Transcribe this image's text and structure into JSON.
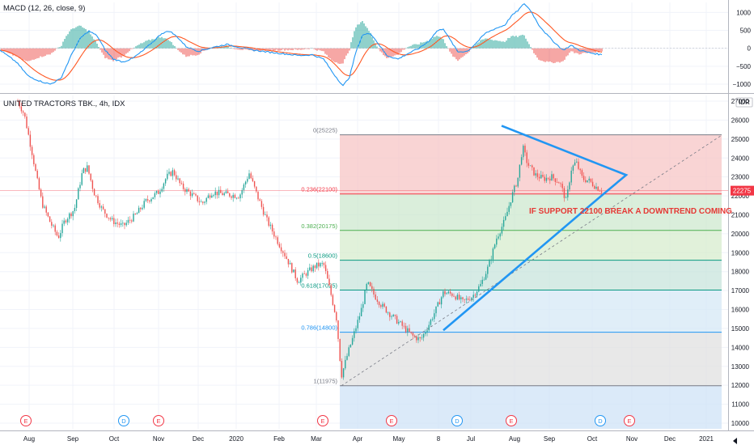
{
  "macd_panel": {
    "title": "MACD (12, 26, close, 9)",
    "y_ticks": [
      "1000",
      "500",
      "0",
      "−500",
      "−1000"
    ],
    "y_tick_values": [
      1000,
      500,
      0,
      -500,
      -1000
    ],
    "ylim": [
      -1180,
      1280
    ]
  },
  "price_panel": {
    "title": "UNITED TRACTORS TBK., 4h, IDX",
    "currency": "IDR",
    "y_ticks": [
      "27000",
      "26000",
      "25000",
      "24000",
      "23000",
      "22000",
      "21000",
      "20000",
      "19000",
      "18000",
      "17000",
      "16000",
      "15000",
      "14000",
      "13000",
      "12000",
      "11000",
      "10000"
    ],
    "y_tick_values": [
      27000,
      26000,
      25000,
      24000,
      23000,
      22000,
      21000,
      20000,
      19000,
      18000,
      17000,
      16000,
      15000,
      14000,
      13000,
      12000,
      11000,
      10000
    ],
    "ylim": [
      9700,
      27300
    ],
    "current_price_label": "22275",
    "current_price": 22275,
    "annotation": "IF SUPPORT 22100 BREAK A DOWNTREND COMING"
  },
  "x_axis": {
    "labels": [
      "Aug",
      "Sep",
      "Oct",
      "Nov",
      "Dec",
      "2020",
      "Feb",
      "Mar",
      "Apr",
      "May",
      "8",
      "Jul",
      "Aug",
      "Sep",
      "Oct",
      "Nov",
      "Dec",
      "2021"
    ]
  },
  "events": [
    {
      "letter": "E",
      "kind": "earnings"
    },
    {
      "letter": "D",
      "kind": "dividend"
    },
    {
      "letter": "E",
      "kind": "earnings"
    },
    {
      "letter": "E",
      "kind": "earnings"
    },
    {
      "letter": "E",
      "kind": "earnings"
    },
    {
      "letter": "D",
      "kind": "dividend"
    },
    {
      "letter": "E",
      "kind": "earnings"
    },
    {
      "letter": "D",
      "kind": "dividend"
    },
    {
      "letter": "E",
      "kind": "earnings"
    }
  ],
  "colors": {
    "up": "#26a69a",
    "down": "#ef5350",
    "macd": "#2196f3",
    "signal": "#ff5722",
    "trendline": "#2196f3",
    "annotation": "#e53935",
    "price_line": "#f23645"
  },
  "chart_data": [
    {
      "type": "line",
      "title": "MACD (12, 26, close, 9)",
      "series": [
        {
          "name": "MACD",
          "x": [
            "Jul",
            "Aug",
            "Sep",
            "Oct",
            "Nov",
            "Dec",
            "2020",
            "Feb",
            "Mar",
            "Apr",
            "May",
            "Jun",
            "Jul",
            "Aug",
            "Sep",
            "Oct"
          ],
          "values": [
            300,
            -900,
            450,
            -400,
            350,
            -100,
            100,
            -150,
            -1100,
            350,
            -300,
            250,
            -100,
            1100,
            0,
            -150
          ]
        },
        {
          "name": "Signal",
          "x": [
            "Jul",
            "Aug",
            "Sep",
            "Oct",
            "Nov",
            "Dec",
            "2020",
            "Feb",
            "Mar",
            "Apr",
            "May",
            "Jun",
            "Jul",
            "Aug",
            "Sep",
            "Oct"
          ],
          "values": [
            250,
            -800,
            400,
            -350,
            300,
            -80,
            80,
            -120,
            -950,
            300,
            -250,
            200,
            -80,
            1000,
            50,
            -100
          ]
        }
      ],
      "ylim": [
        -1180,
        1280
      ]
    },
    {
      "type": "line",
      "title": "UNITED TRACTORS TBK., 4h, IDX",
      "x": [
        "Jul",
        "Aug",
        "Sep",
        "Oct",
        "Nov",
        "Dec",
        "2020",
        "Feb",
        "Mar",
        "Apr",
        "May",
        "Jun",
        "Jul",
        "Aug",
        "Sep",
        "Oct"
      ],
      "series": [
        {
          "name": "Close",
          "values": [
            26500,
            20500,
            22800,
            20600,
            22900,
            21200,
            22500,
            21000,
            17800,
            15700,
            15200,
            17200,
            17900,
            25000,
            23200,
            22275
          ]
        }
      ],
      "ylim": [
        9700,
        27300
      ],
      "fibonacci": {
        "levels": [
          {
            "label": "0(25225)",
            "ratio": 0,
            "price": 25225,
            "color": "#787b86",
            "fill": "#f7c6c5"
          },
          {
            "label": "0.236(22100)",
            "ratio": 0.236,
            "price": 22100,
            "color": "#f23645",
            "fill": "#cde8cf"
          },
          {
            "label": "0.382(20175)",
            "ratio": 0.382,
            "price": 20175,
            "color": "#4caf50",
            "fill": "#d7eccd"
          },
          {
            "label": "0.5(18600)",
            "ratio": 0.5,
            "price": 18600,
            "color": "#089981",
            "fill": "#c8e4dc"
          },
          {
            "label": "0.618(17025)",
            "ratio": 0.618,
            "price": 17025,
            "color": "#089981",
            "fill": "#d5e8f6"
          },
          {
            "label": "0.786(14800)",
            "ratio": 0.786,
            "price": 14800,
            "color": "#2196f3",
            "fill": "#e0e0e0"
          },
          {
            "label": "1(11975)",
            "ratio": 1,
            "price": 11975,
            "color": "#787b86",
            "fill": "#cfe3f7"
          }
        ]
      },
      "annotation": "IF SUPPORT 22100 BREAK A DOWNTREND COMING"
    }
  ]
}
